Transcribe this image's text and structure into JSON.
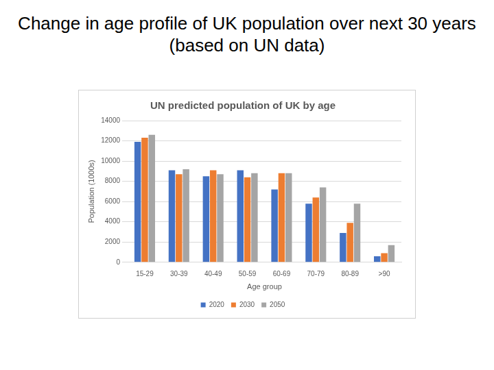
{
  "slide": {
    "title": "Change in age profile of UK population over next 30 years (based on UN data)"
  },
  "chart_data": {
    "type": "bar",
    "title": "UN predicted population of UK by age",
    "x_label": "Age group",
    "y_label": "Population (1000s)",
    "categories": [
      "15-29",
      "30-39",
      "40-49",
      "50-59",
      "60-69",
      "70-79",
      "80-89",
      ">90"
    ],
    "series": [
      {
        "name": "2020",
        "color": "#4472c4",
        "values": [
          11900,
          9100,
          8500,
          9100,
          7200,
          5800,
          2900,
          600
        ]
      },
      {
        "name": "2030",
        "color": "#ed7d31",
        "values": [
          12300,
          8700,
          9100,
          8400,
          8800,
          6400,
          3900,
          900
        ]
      },
      {
        "name": "2050",
        "color": "#a5a5a5",
        "values": [
          12600,
          9200,
          8700,
          8800,
          8800,
          7400,
          5800,
          1700
        ]
      }
    ],
    "ylim": [
      0,
      14000
    ],
    "yticks": [
      0,
      2000,
      4000,
      6000,
      8000,
      10000,
      12000,
      14000
    ],
    "grid": true,
    "legend": "bottom"
  }
}
